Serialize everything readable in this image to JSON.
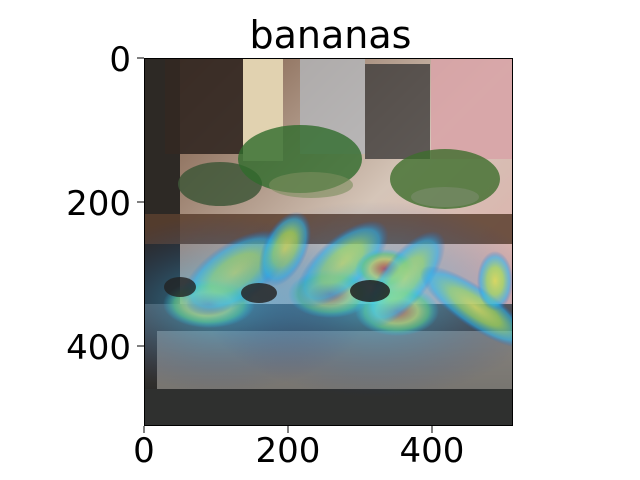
{
  "figure": {
    "title": "bananas",
    "x_ticks": [
      "0",
      "200",
      "400"
    ],
    "y_ticks": [
      "0",
      "200",
      "400"
    ]
  },
  "image_description_colors": {
    "heatmap_hot": "#ff3b1f",
    "heatmap_warm": "#ffd43b",
    "heatmap_cool": "#1ec8ff",
    "heatmap_cold": "#1a73e8",
    "scene_dark": "#2e2a26",
    "scene_light": "#d7c6b7"
  }
}
